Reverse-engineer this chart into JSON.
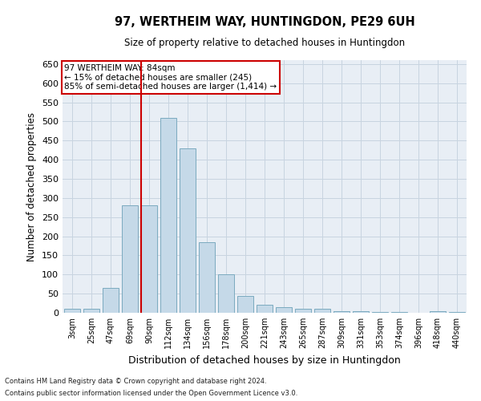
{
  "title": "97, WERTHEIM WAY, HUNTINGDON, PE29 6UH",
  "subtitle": "Size of property relative to detached houses in Huntingdon",
  "xlabel": "Distribution of detached houses by size in Huntingdon",
  "ylabel": "Number of detached properties",
  "categories": [
    "3sqm",
    "25sqm",
    "47sqm",
    "69sqm",
    "90sqm",
    "112sqm",
    "134sqm",
    "156sqm",
    "178sqm",
    "200sqm",
    "221sqm",
    "243sqm",
    "265sqm",
    "287sqm",
    "309sqm",
    "331sqm",
    "353sqm",
    "374sqm",
    "396sqm",
    "418sqm",
    "440sqm"
  ],
  "values": [
    10,
    10,
    65,
    280,
    280,
    510,
    430,
    185,
    100,
    45,
    20,
    15,
    10,
    10,
    5,
    5,
    3,
    2,
    0,
    5,
    2
  ],
  "bar_color": "#c5d9e8",
  "bar_edge_color": "#7baabf",
  "grid_color": "#c8d4e0",
  "background_color": "#e8eef5",
  "vline_color": "#cc0000",
  "annotation_text": "97 WERTHEIM WAY: 84sqm\n← 15% of detached houses are smaller (245)\n85% of semi-detached houses are larger (1,414) →",
  "annotation_box_color": "#ffffff",
  "annotation_box_edge": "#cc0000",
  "ylim": [
    0,
    660
  ],
  "yticks": [
    0,
    50,
    100,
    150,
    200,
    250,
    300,
    350,
    400,
    450,
    500,
    550,
    600,
    650
  ],
  "footnote1": "Contains HM Land Registry data © Crown copyright and database right 2024.",
  "footnote2": "Contains public sector information licensed under the Open Government Licence v3.0."
}
